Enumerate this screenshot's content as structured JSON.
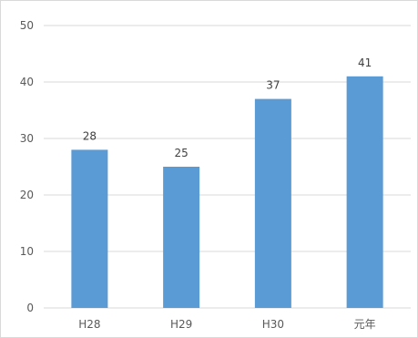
{
  "chart_data": {
    "type": "bar",
    "categories": [
      "H28",
      "H29",
      "H30",
      "元年"
    ],
    "values": [
      28,
      25,
      37,
      41
    ],
    "data_labels": [
      "28",
      "25",
      "37",
      "41"
    ],
    "yticks": [
      "0",
      "10",
      "20",
      "30",
      "40",
      "50"
    ],
    "ylim": [
      0,
      50
    ],
    "grid": true,
    "legend": "none",
    "bar_color": "#5b9bd5",
    "grid_color": "#d9d9d9"
  }
}
